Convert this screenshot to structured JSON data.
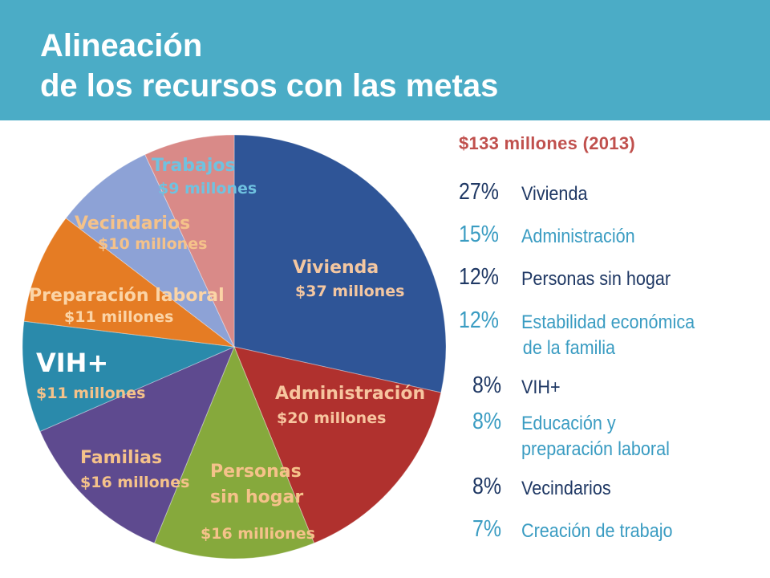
{
  "title": {
    "line1": "Alineación",
    "line2": "de los recursos con las metas"
  },
  "total": "$133 millones (2013)",
  "colors": {
    "header": "#4bacc6",
    "total": "#c0504d"
  },
  "chart_data": {
    "type": "pie",
    "title": "",
    "slices": [
      {
        "label": "Vivienda",
        "amount_label": "$37 millones",
        "value": 37,
        "color": "#2f5597",
        "label_color": "#f4c7a1",
        "amount_color": "#f4c7a1"
      },
      {
        "label": "Administración",
        "amount_label": "$20 millones",
        "value": 20,
        "color": "#b0312e",
        "label_color": "#f7c59f",
        "amount_color": "#f7c59f"
      },
      {
        "label": "Personas sin hogar",
        "label_lines": [
          "Personas",
          "sin hogar"
        ],
        "amount_label": "$16 milliones",
        "value": 16,
        "color": "#86a93c",
        "label_color": "#f5c28a",
        "amount_color": "#f5c28a"
      },
      {
        "label": "Familias",
        "amount_label": "$16 millones",
        "value": 16,
        "color": "#5e4a8f",
        "label_color": "#f5c28a",
        "amount_color": "#f5c28a"
      },
      {
        "label": "VIH+",
        "amount_label": "$11 millones",
        "value": 11,
        "color": "#2a8aab",
        "label_color": "#ffffff",
        "amount_color": "#f5c28a"
      },
      {
        "label": "Preparación laboral",
        "amount_label": "$11 millones",
        "value": 11,
        "color": "#e57c24",
        "label_color": "#fbd4a6",
        "amount_color": "#fbd4a6"
      },
      {
        "label": "Vecindarios",
        "amount_label": "$10 millones",
        "value": 10,
        "color": "#8da2d6",
        "label_color": "#f5c28a",
        "amount_color": "#f5c28a"
      },
      {
        "label": "Trabajos",
        "amount_label": "$9 millones",
        "value": 9,
        "color": "#d98a88",
        "label_color": "#6fc2e0",
        "amount_color": "#6fc2e0"
      }
    ]
  },
  "legend": [
    {
      "pct": "27%",
      "lines": [
        "Vivienda"
      ],
      "pct_color": "#1f3864",
      "color": "#1f3864"
    },
    {
      "pct": "15%",
      "lines": [
        "Administración"
      ],
      "pct_color": "#3a9cc2",
      "color": "#3a9cc2"
    },
    {
      "pct": "12%",
      "lines": [
        "Personas sin hogar"
      ],
      "pct_color": "#1f3864",
      "color": "#1f3864"
    },
    {
      "pct": "12%",
      "lines": [
        "Estabilidad económica",
        "de la familia"
      ],
      "pct_color": "#3a9cc2",
      "color": "#3a9cc2"
    },
    {
      "pct": "8%",
      "lines": [
        "VIH+"
      ],
      "pct_color": "#1f3864",
      "color": "#1f3864"
    },
    {
      "pct": "8%",
      "lines": [
        "Educación y",
        "preparación laboral"
      ],
      "pct_color": "#3a9cc2",
      "color": "#3a9cc2"
    },
    {
      "pct": "8%",
      "lines": [
        "Vecindarios"
      ],
      "pct_color": "#1f3864",
      "color": "#1f3864"
    },
    {
      "pct": "7%",
      "lines": [
        "Creación de trabajo"
      ],
      "pct_color": "#3a9cc2",
      "color": "#3a9cc2"
    }
  ]
}
